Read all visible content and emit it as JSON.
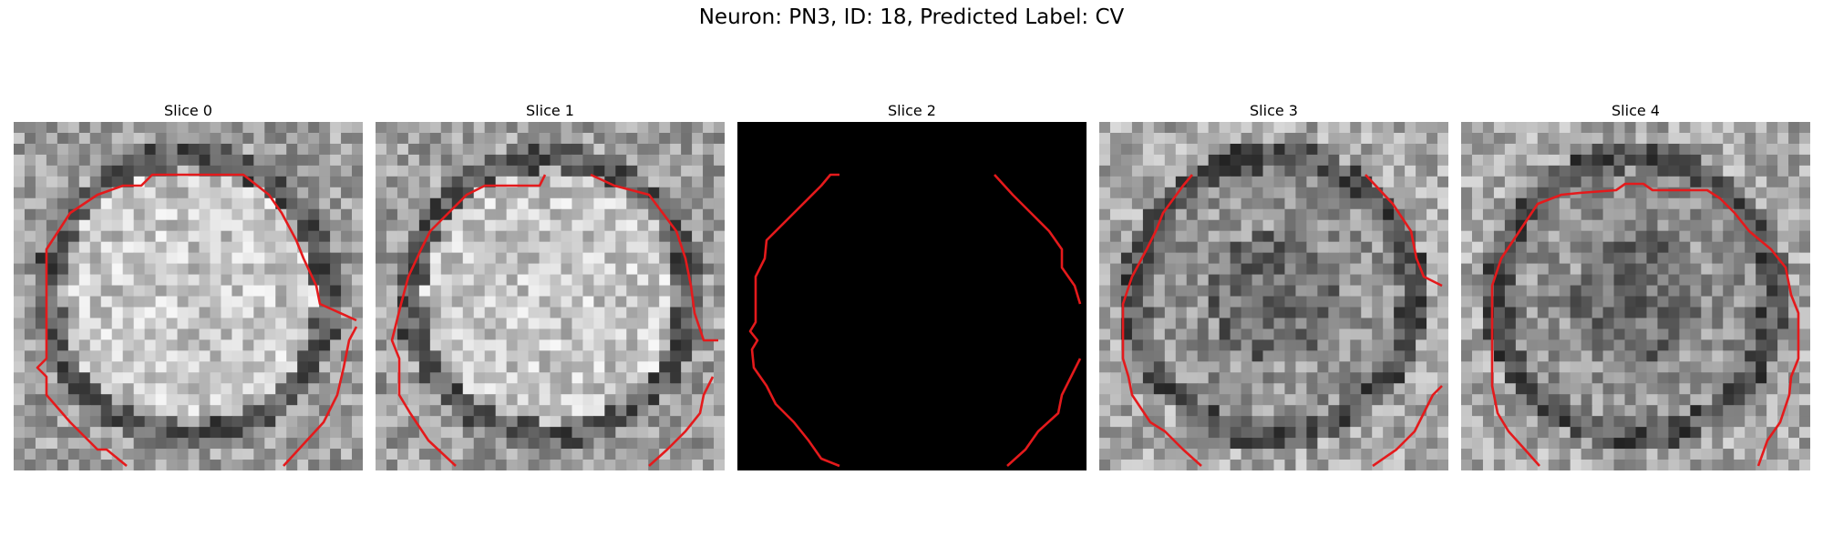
{
  "figure": {
    "title": "Neuron: PN3, ID: 18, Predicted Label: CV"
  },
  "contour_color": "#e41a1c",
  "panels": [
    {
      "title": "Slice 0",
      "blank": false,
      "seed": 11,
      "center_bright": true
    },
    {
      "title": "Slice 1",
      "blank": false,
      "seed": 23,
      "center_bright": true
    },
    {
      "title": "Slice 2",
      "blank": true,
      "seed": 37,
      "center_bright": false
    },
    {
      "title": "Slice 3",
      "blank": false,
      "seed": 41,
      "center_bright": false
    },
    {
      "title": "Slice 4",
      "blank": false,
      "seed": 59,
      "center_bright": false
    }
  ]
}
